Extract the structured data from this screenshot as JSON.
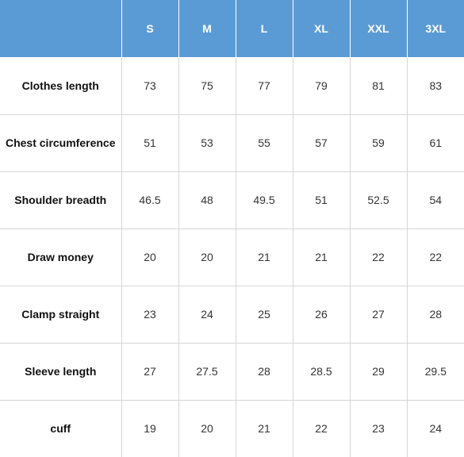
{
  "table": {
    "corner": "",
    "sizes": [
      "S",
      "M",
      "L",
      "XL",
      "XXL",
      "3XL"
    ],
    "rows": [
      {
        "label": "Clothes length",
        "values": [
          "73",
          "75",
          "77",
          "79",
          "81",
          "83"
        ]
      },
      {
        "label": "Chest circumference",
        "values": [
          "51",
          "53",
          "55",
          "57",
          "59",
          "61"
        ]
      },
      {
        "label": "Shoulder breadth",
        "values": [
          "46.5",
          "48",
          "49.5",
          "51",
          "52.5",
          "54"
        ]
      },
      {
        "label": "Draw money",
        "values": [
          "20",
          "20",
          "21",
          "21",
          "22",
          "22"
        ]
      },
      {
        "label": "Clamp straight",
        "values": [
          "23",
          "24",
          "25",
          "26",
          "27",
          "28"
        ]
      },
      {
        "label": "Sleeve length",
        "values": [
          "27",
          "27.5",
          "28",
          "28.5",
          "29",
          "29.5"
        ]
      },
      {
        "label": "cuff",
        "values": [
          "19",
          "20",
          "21",
          "22",
          "23",
          "24"
        ]
      }
    ]
  }
}
